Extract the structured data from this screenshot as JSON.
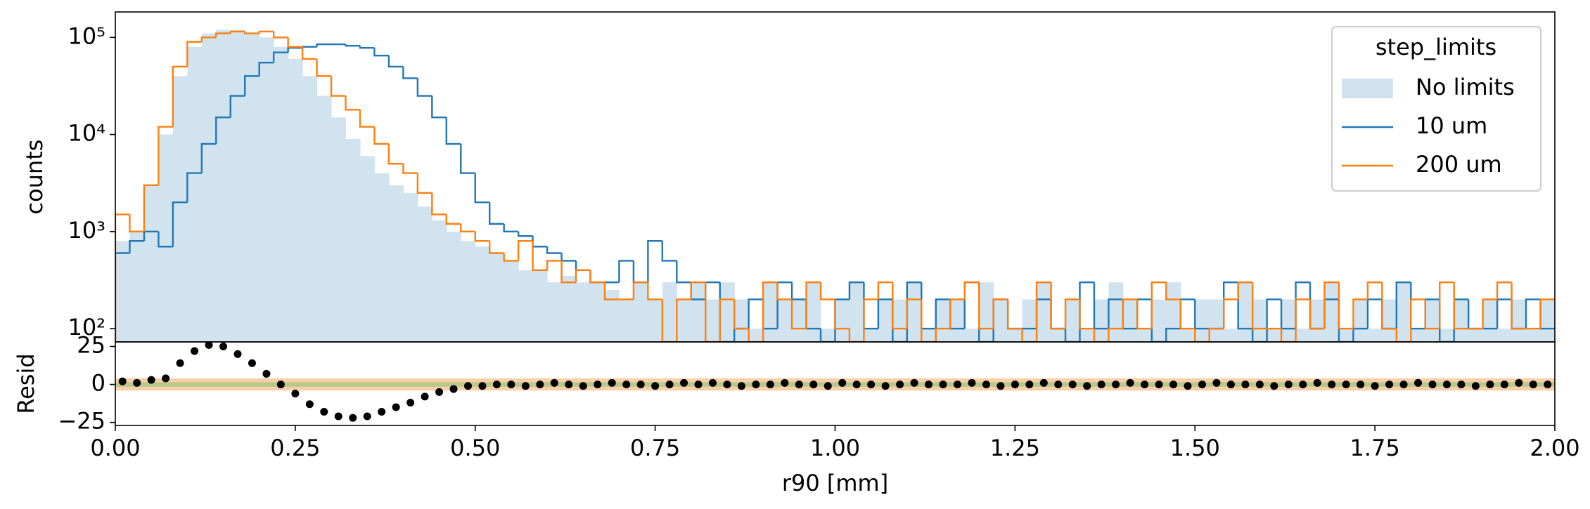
{
  "chart_data": [
    {
      "type": "histogram",
      "ylabel": "counts",
      "log_y": true,
      "xlim": [
        0,
        2
      ],
      "ylim": [
        73,
        183000
      ],
      "yticks": [
        {
          "value": 100,
          "label": "10²"
        },
        {
          "value": 1000,
          "label": "10³"
        },
        {
          "value": 10000,
          "label": "10⁴"
        },
        {
          "value": 100000,
          "label": "10⁵"
        }
      ],
      "legend_title": "step_limits",
      "legend_loc": "upper right",
      "bins": [
        0,
        0.02,
        0.04,
        0.06,
        0.08,
        0.1,
        0.12,
        0.14,
        0.16,
        0.18,
        0.2,
        0.22,
        0.24,
        0.26,
        0.28,
        0.3,
        0.32,
        0.34,
        0.36,
        0.38,
        0.4,
        0.42,
        0.44,
        0.46,
        0.48,
        0.5,
        0.52,
        0.54,
        0.56,
        0.58,
        0.6,
        0.62,
        0.64,
        0.66,
        0.68,
        0.7,
        0.72,
        0.74,
        0.76,
        0.78,
        0.8,
        0.82,
        0.84,
        0.86,
        0.88,
        0.9,
        0.92,
        0.94,
        0.96,
        0.98,
        1,
        1.02,
        1.04,
        1.06,
        1.08,
        1.1,
        1.12,
        1.14,
        1.16,
        1.18,
        1.2,
        1.22,
        1.24,
        1.26,
        1.28,
        1.3,
        1.32,
        1.34,
        1.36,
        1.38,
        1.4,
        1.42,
        1.44,
        1.46,
        1.48,
        1.5,
        1.52,
        1.54,
        1.56,
        1.58,
        1.6,
        1.62,
        1.64,
        1.66,
        1.68,
        1.7,
        1.72,
        1.74,
        1.76,
        1.78,
        1.8,
        1.82,
        1.84,
        1.86,
        1.88,
        1.9,
        1.92,
        1.94,
        1.96,
        1.98,
        2
      ],
      "series": [
        {
          "name": "No limits",
          "color": "#d2e3f0",
          "style": "fill",
          "values": [
            800,
            1000,
            3000,
            10000,
            40000,
            80000,
            110000,
            120000,
            120000,
            110000,
            100000,
            80000,
            60000,
            40000,
            25000,
            15000,
            9000,
            6000,
            4000,
            3000,
            2500,
            1800,
            1300,
            1000,
            800,
            700,
            600,
            500,
            400,
            400,
            300,
            350,
            300,
            300,
            250,
            200,
            300,
            200,
            300,
            200,
            300,
            200,
            300,
            200,
            100,
            300,
            200,
            200,
            300,
            100,
            200,
            300,
            100,
            200,
            200,
            300,
            100,
            200,
            200,
            100,
            300,
            200,
            100,
            200,
            300,
            100,
            200,
            100,
            200,
            300,
            200,
            100,
            200,
            300,
            100,
            200,
            200,
            100,
            300,
            200,
            100,
            200,
            100,
            200,
            300,
            100,
            200,
            100,
            200,
            300,
            100,
            200,
            100,
            200,
            100,
            200,
            100,
            200,
            100,
            200
          ]
        },
        {
          "name": "10 um",
          "color": "#1f77b4",
          "style": "step",
          "values": [
            600,
            800,
            1000,
            700,
            2000,
            4000,
            8000,
            15000,
            25000,
            40000,
            55000,
            70000,
            78000,
            80000,
            85000,
            85000,
            82000,
            78000,
            65000,
            50000,
            38000,
            25000,
            15000,
            8000,
            4000,
            2000,
            1200,
            1000,
            900,
            700,
            600,
            500,
            400,
            300,
            300,
            500,
            300,
            800,
            500,
            300,
            200,
            300,
            0,
            100,
            200,
            100,
            300,
            200,
            100,
            0,
            200,
            300,
            100,
            200,
            0,
            300,
            100,
            200,
            100,
            300,
            0,
            200,
            100,
            100,
            200,
            100,
            0,
            300,
            100,
            200,
            100,
            200,
            0,
            100,
            200,
            100,
            100,
            300,
            100,
            0,
            200,
            100,
            300,
            100,
            200,
            0,
            100,
            200,
            100,
            300,
            100,
            200,
            0,
            200,
            100,
            100,
            200,
            100,
            200,
            100
          ]
        },
        {
          "name": "200 um",
          "color": "#ff7f0e",
          "style": "step",
          "values": [
            1500,
            1000,
            3000,
            12000,
            50000,
            90000,
            100000,
            110000,
            115000,
            110000,
            115000,
            100000,
            80000,
            60000,
            40000,
            25000,
            18000,
            12000,
            8000,
            5000,
            4000,
            2500,
            1500,
            1200,
            1000,
            800,
            600,
            500,
            800,
            400,
            500,
            300,
            400,
            300,
            200,
            200,
            300,
            200,
            0,
            200,
            300,
            0,
            200,
            100,
            0,
            300,
            200,
            100,
            300,
            200,
            100,
            0,
            200,
            300,
            100,
            200,
            0,
            100,
            200,
            300,
            100,
            200,
            100,
            0,
            300,
            100,
            200,
            100,
            0,
            100,
            200,
            100,
            300,
            200,
            100,
            0,
            100,
            200,
            300,
            100,
            100,
            0,
            200,
            100,
            300,
            100,
            200,
            300,
            100,
            0,
            200,
            100,
            300,
            100,
            100,
            200,
            300,
            100,
            100,
            200
          ]
        }
      ]
    },
    {
      "type": "scatter",
      "ylabel": "Resid",
      "xlabel": "r90 [mm]",
      "xlim": [
        0,
        2
      ],
      "ylim": [
        -27,
        28
      ],
      "yticks": [
        {
          "value": -25,
          "label": "−25"
        },
        0,
        25
      ],
      "xticks": [
        {
          "value": 0,
          "label": "0.00"
        },
        0.25,
        {
          "value": 0.5,
          "label": "0.50"
        },
        0.75,
        {
          "value": 1,
          "label": "1.00"
        },
        1.25,
        {
          "value": 1.5,
          "label": "1.50"
        },
        1.75,
        {
          "value": 2,
          "label": "2.00"
        }
      ],
      "bands": [
        {
          "lo": -4,
          "hi": 4,
          "color": "#f9cfa8"
        },
        {
          "lo": -1.5,
          "hi": 1.5,
          "color": "#b9c98e"
        }
      ],
      "color": "#000000",
      "x": [
        0.01,
        0.03,
        0.05,
        0.07,
        0.09,
        0.11,
        0.13,
        0.15,
        0.17,
        0.19,
        0.21,
        0.23,
        0.25,
        0.27,
        0.29,
        0.31,
        0.33,
        0.35,
        0.37,
        0.39,
        0.41,
        0.43,
        0.45,
        0.47,
        0.49,
        0.51,
        0.53,
        0.55,
        0.57,
        0.59,
        0.61,
        0.63,
        0.65,
        0.67,
        0.69,
        0.71,
        0.73,
        0.75,
        0.77,
        0.79,
        0.81,
        0.83,
        0.85,
        0.87,
        0.89,
        0.91,
        0.93,
        0.95,
        0.97,
        0.99,
        1.01,
        1.03,
        1.05,
        1.07,
        1.09,
        1.11,
        1.13,
        1.15,
        1.17,
        1.19,
        1.21,
        1.23,
        1.25,
        1.27,
        1.29,
        1.31,
        1.33,
        1.35,
        1.37,
        1.39,
        1.41,
        1.43,
        1.45,
        1.47,
        1.49,
        1.51,
        1.53,
        1.55,
        1.57,
        1.59,
        1.61,
        1.63,
        1.65,
        1.67,
        1.69,
        1.71,
        1.73,
        1.75,
        1.77,
        1.79,
        1.81,
        1.83,
        1.85,
        1.87,
        1.89,
        1.91,
        1.93,
        1.95,
        1.97,
        1.99
      ],
      "values": [
        2,
        1,
        3,
        4,
        14,
        22,
        26,
        25,
        20,
        14,
        7,
        0,
        -6,
        -13,
        -18,
        -21,
        -22,
        -21,
        -18,
        -15,
        -12,
        -8,
        -5,
        -3,
        -1,
        -1,
        0,
        0,
        -1,
        0,
        1,
        0,
        -1,
        0,
        1,
        0,
        0,
        -1,
        0,
        1,
        0,
        1,
        0,
        -1,
        0,
        0,
        1,
        0,
        0,
        -1,
        1,
        0,
        0,
        -1,
        0,
        1,
        0,
        0,
        0,
        1,
        0,
        -1,
        0,
        0,
        1,
        0,
        0,
        -1,
        0,
        0,
        1,
        0,
        0,
        0,
        -1,
        0,
        1,
        0,
        0,
        0,
        -1,
        0,
        0,
        1,
        0,
        0,
        0,
        -1,
        0,
        0,
        1,
        0,
        0,
        0,
        -1,
        0,
        0,
        1,
        0,
        0
      ]
    }
  ]
}
